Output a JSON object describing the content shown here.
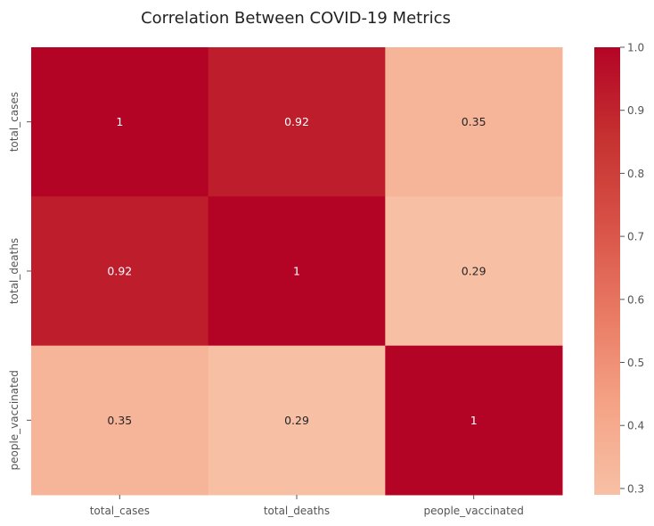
{
  "chart_data": {
    "type": "heatmap",
    "title": "Correlation Between COVID-19 Metrics",
    "xlabel": "",
    "ylabel": "",
    "x_categories": [
      "total_cases",
      "total_deaths",
      "people_vaccinated"
    ],
    "y_categories": [
      "total_cases",
      "total_deaths",
      "people_vaccinated"
    ],
    "values": [
      [
        1.0,
        0.92,
        0.35
      ],
      [
        0.92,
        1.0,
        0.29
      ],
      [
        0.35,
        0.29,
        1.0
      ]
    ],
    "annotations": [
      [
        "1",
        "0.92",
        "0.35"
      ],
      [
        "0.92",
        "1",
        "0.29"
      ],
      [
        "0.35",
        "0.29",
        "1"
      ]
    ],
    "colorbar": {
      "range": [
        0.29,
        1.0
      ],
      "ticks": [
        0.3,
        0.4,
        0.5,
        0.6,
        0.7,
        0.8,
        0.9,
        1.0
      ],
      "tick_labels": [
        "0.3",
        "0.4",
        "0.5",
        "0.6",
        "0.7",
        "0.8",
        "0.9",
        "1.0"
      ],
      "colormap": "coolwarm (upper half)",
      "low_color": "#f7c0a5",
      "high_color": "#b40426"
    },
    "grid": false,
    "legend": "colorbar right"
  }
}
